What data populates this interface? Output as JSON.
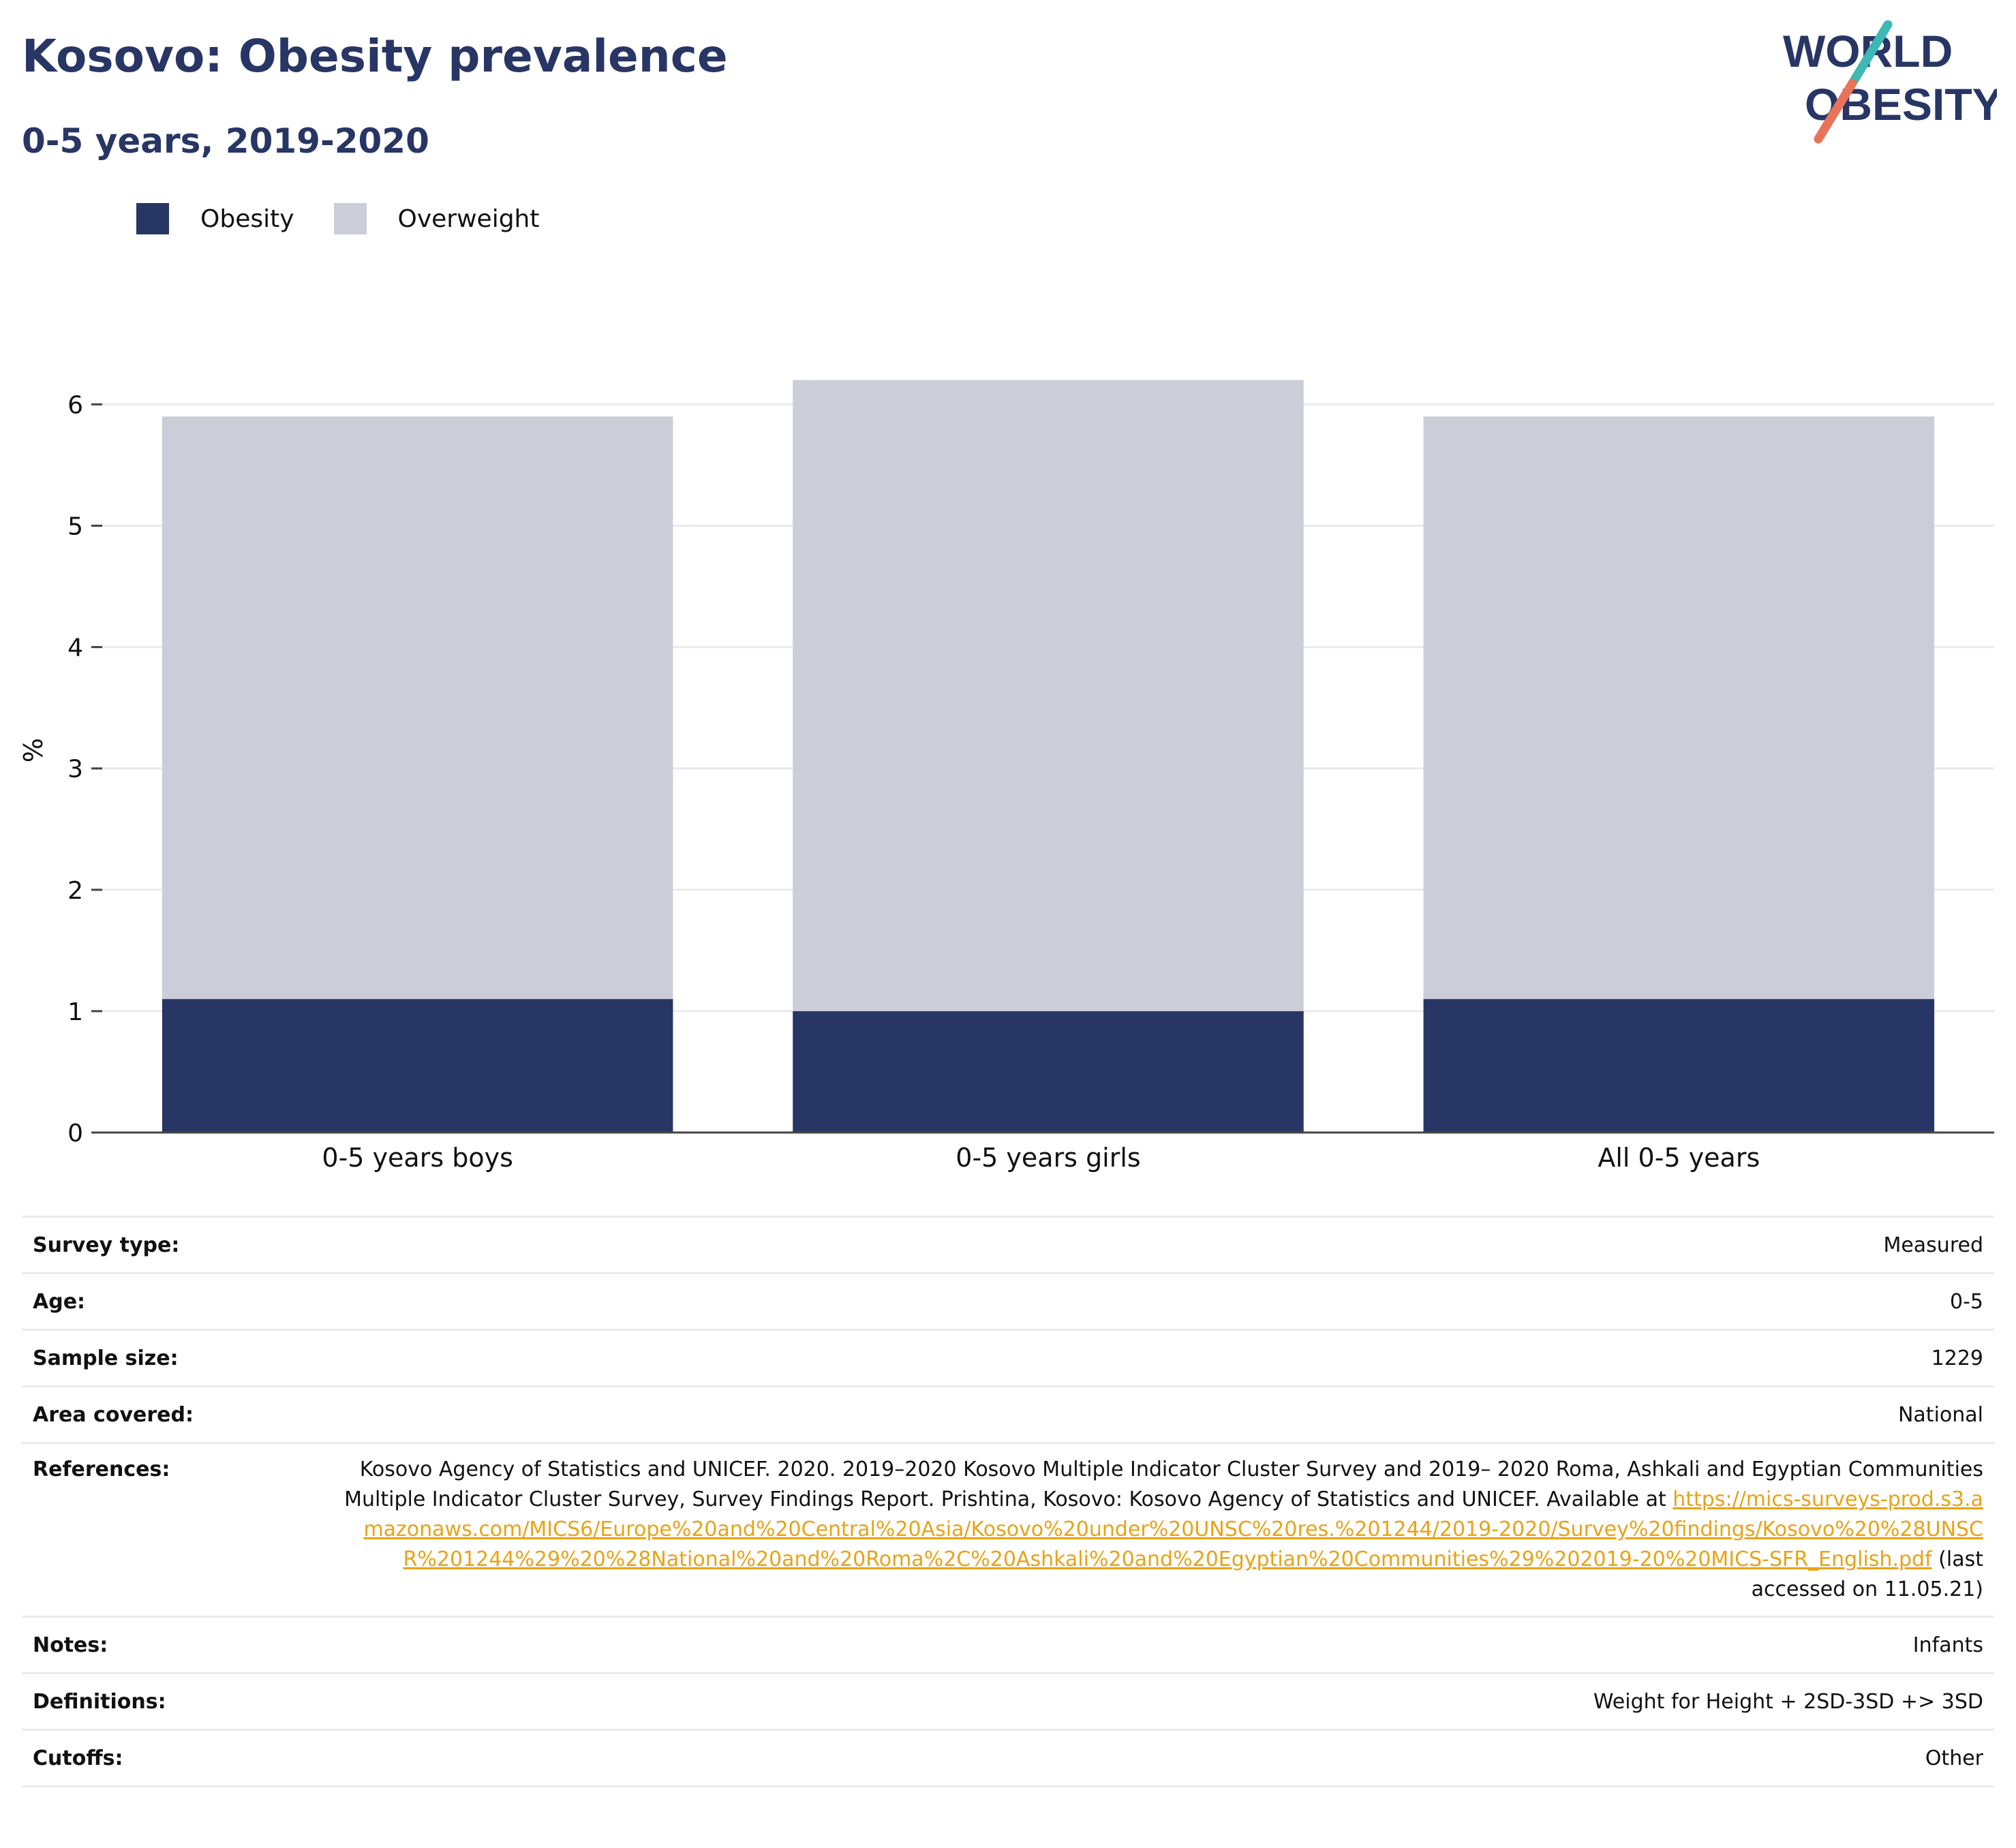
{
  "header": {
    "title": "Kosovo: Obesity prevalence",
    "subtitle": "0-5 years, 2019-2020"
  },
  "logo": {
    "line1": "WORLD",
    "line2": "OBESITY",
    "colors": {
      "text": "#283665",
      "slash_top": "#3cb8b5",
      "slash_bottom": "#e8735a"
    }
  },
  "colors": {
    "obesity": "#283665",
    "overweight": "#cbcdd8",
    "link": "#e8a317"
  },
  "legend": {
    "obesity": "Obesity",
    "overweight": "Overweight"
  },
  "chart_data": {
    "type": "bar",
    "stacked": true,
    "categories": [
      "0-5 years boys",
      "0-5 years girls",
      "All 0-5 years"
    ],
    "series": [
      {
        "name": "Obesity",
        "values": [
          1.1,
          1.0,
          1.1
        ]
      },
      {
        "name": "Overweight",
        "values": [
          4.8,
          5.2,
          4.8
        ]
      }
    ],
    "title": "Kosovo: Obesity prevalence",
    "subtitle": "0-5 years, 2019-2020",
    "xlabel": "",
    "ylabel": "%",
    "yticks": [
      0,
      1,
      2,
      3,
      4,
      5,
      6
    ],
    "ylim": [
      0,
      6.3
    ],
    "grid": true,
    "legend_position": "top-left"
  },
  "info": {
    "survey_type": {
      "label": "Survey type:",
      "value": "Measured"
    },
    "age": {
      "label": "Age:",
      "value": "0-5"
    },
    "sample_size": {
      "label": "Sample size:",
      "value": "1229"
    },
    "area": {
      "label": "Area covered:",
      "value": "National"
    },
    "references": {
      "label": "References:",
      "text": "Kosovo Agency of Statistics and UNICEF. 2020. 2019–2020 Kosovo Multiple Indicator Cluster Survey and 2019– 2020 Roma, Ashkali and Egyptian Communities Multiple Indicator Cluster Survey, Survey Findings Report. Prishtina, Kosovo: Kosovo Agency of Statistics and UNICEF. Available at ",
      "link": "https://mics-surveys-prod.s3.amazonaws.com/MICS6/Europe%20and%20Central%20Asia/Kosovo%20under%20UNSC%20res.%201244/2019-2020/Survey%20findings/Kosovo%20%28UNSCR%201244%29%20%28National%20and%20Roma%2C%20Ashkali%20and%20Egyptian%20Communities%29%202019-20%20MICS-SFR_English.pdf",
      "suffix": " (last accessed on 11.05.21)"
    },
    "notes": {
      "label": "Notes:",
      "value": "Infants"
    },
    "definitions": {
      "label": "Definitions:",
      "value": "Weight for Height + 2SD-3SD +> 3SD"
    },
    "cutoffs": {
      "label": "Cutoffs:",
      "value": "Other"
    }
  }
}
